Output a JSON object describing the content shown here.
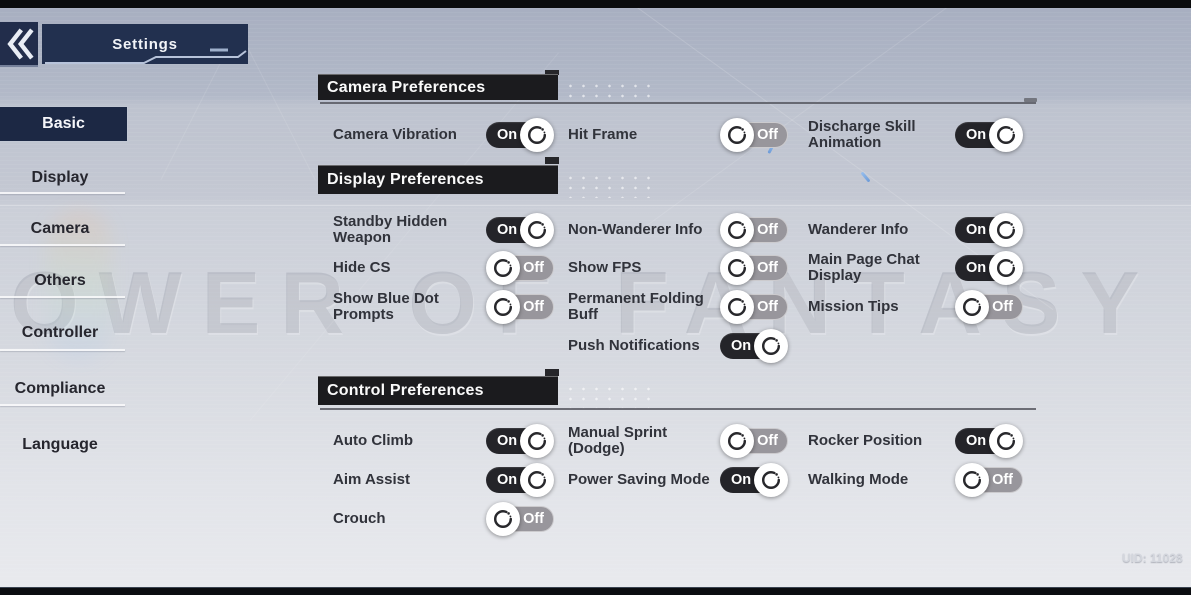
{
  "header": {
    "title": "Settings"
  },
  "watermark": "TOWER OF FANTASY",
  "footer": {
    "uid": "UID: 11028"
  },
  "colors": {
    "panel": "#22304f",
    "header_bar": "#1b1b1e",
    "toggle_on": "#242429",
    "toggle_off": "#98969c",
    "selected_nav": "#1c2844"
  },
  "icons": {
    "back": "double-chevron-left",
    "toggle_knob": "dial-ring"
  },
  "sidebar": {
    "items": [
      {
        "label": "Basic",
        "selected": true
      },
      {
        "label": "Display",
        "selected": false
      },
      {
        "label": "Camera",
        "selected": false
      },
      {
        "label": "Others",
        "selected": false
      },
      {
        "label": "Controller",
        "selected": false
      },
      {
        "label": "Compliance",
        "selected": false
      },
      {
        "label": "Language",
        "selected": false
      }
    ]
  },
  "sections": [
    {
      "title": "Camera Preferences",
      "rows": [
        {
          "label": "Camera Vibration",
          "state": "On"
        },
        {
          "label": "Hit Frame",
          "state": "Off"
        },
        {
          "label": "Discharge Skill Animation",
          "state": "On"
        }
      ]
    },
    {
      "title": "Display Preferences",
      "rows": [
        {
          "label": "Standby Hidden Weapon",
          "state": "On"
        },
        {
          "label": "Non-Wanderer Info",
          "state": "Off"
        },
        {
          "label": "Wanderer Info",
          "state": "On"
        },
        {
          "label": "Hide CS",
          "state": "Off"
        },
        {
          "label": "Show FPS",
          "state": "Off"
        },
        {
          "label": "Main Page Chat Display",
          "state": "On"
        },
        {
          "label": "Show Blue Dot Prompts",
          "state": "Off"
        },
        {
          "label": "Permanent Folding Buff",
          "state": "Off"
        },
        {
          "label": "Mission Tips",
          "state": "Off"
        },
        {
          "label": "Push Notifications",
          "state": "On"
        }
      ]
    },
    {
      "title": "Control Preferences",
      "rows": [
        {
          "label": "Auto Climb",
          "state": "On"
        },
        {
          "label": "Manual Sprint (Dodge)",
          "state": "Off"
        },
        {
          "label": "Rocker Position",
          "state": "On"
        },
        {
          "label": "Aim Assist",
          "state": "On"
        },
        {
          "label": "Power Saving Mode",
          "state": "On"
        },
        {
          "label": "Walking Mode",
          "state": "Off"
        },
        {
          "label": "Crouch",
          "state": "Off"
        }
      ]
    }
  ]
}
